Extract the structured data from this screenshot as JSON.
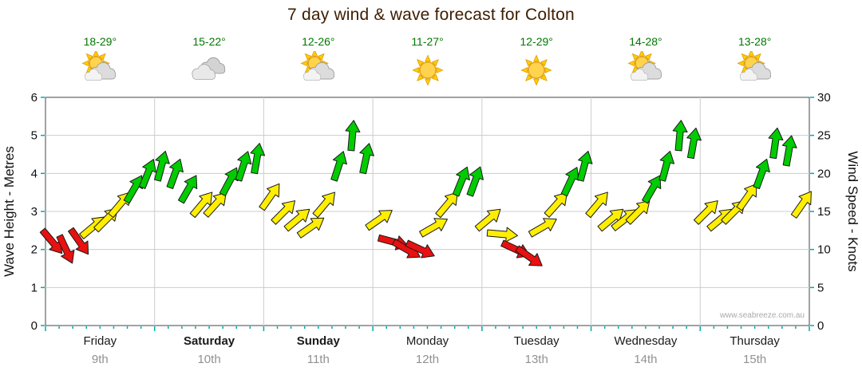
{
  "title": "7 day wind & wave forecast for Colton",
  "watermark": "www.seabreeze.com.au",
  "axes": {
    "left_label": "Wave Height - Metres",
    "right_label": "Wind Speed - Knots",
    "left_ticks": [
      "0",
      "1",
      "2",
      "3",
      "4",
      "5",
      "6"
    ],
    "right_ticks": [
      "0",
      "5",
      "10",
      "15",
      "20",
      "25",
      "30"
    ]
  },
  "days": [
    {
      "name": "Friday",
      "date": "9th",
      "temp": "18-29°",
      "icon": "partly-cloudy",
      "bold": false
    },
    {
      "name": "Saturday",
      "date": "10th",
      "temp": "15-22°",
      "icon": "cloudy",
      "bold": true
    },
    {
      "name": "Sunday",
      "date": "11th",
      "temp": "12-26°",
      "icon": "partly-cloudy",
      "bold": true
    },
    {
      "name": "Monday",
      "date": "12th",
      "temp": "11-27°",
      "icon": "sunny",
      "bold": false
    },
    {
      "name": "Tuesday",
      "date": "13th",
      "temp": "12-29°",
      "icon": "sunny",
      "bold": false
    },
    {
      "name": "Wednesday",
      "date": "14th",
      "temp": "14-28°",
      "icon": "partly-cloudy",
      "bold": false
    },
    {
      "name": "Thursday",
      "date": "15th",
      "temp": "13-28°",
      "icon": "partly-cloudy",
      "bold": false
    }
  ],
  "colors": {
    "arrow_red": "#e81010",
    "arrow_yellow": "#ffee00",
    "arrow_green": "#00cc00",
    "arrow_outline": "#1a1a1a",
    "temp_text": "#007700",
    "grid": "#cccccc",
    "axis": "#444444",
    "tick": "#00aaaa",
    "watermark_text": "#aaaaaa"
  },
  "chart_data": {
    "type": "scatter",
    "title": "7 day wind & wave forecast for Colton",
    "ylabel_left": "Wave Height - Metres",
    "ylabel_right": "Wind Speed - Knots",
    "ylim_wave": [
      0,
      6
    ],
    "ylim_wind": [
      0,
      30
    ],
    "grid": true,
    "categories": [
      "Friday 9th",
      "Saturday 10th",
      "Sunday 11th",
      "Monday 12th",
      "Tuesday 13th",
      "Wednesday 14th",
      "Thursday 15th"
    ],
    "points_per_day": 8,
    "wind_series": {
      "name": "Wind speed (knots, arrow = direction)",
      "knots": [
        11,
        10,
        11,
        13,
        14,
        16,
        18,
        20,
        21,
        20,
        18,
        16,
        16,
        19,
        21,
        22,
        17,
        15,
        14,
        13,
        16,
        21,
        25,
        22,
        14,
        11,
        10,
        10,
        13,
        16,
        19,
        19,
        14,
        12,
        10,
        9,
        13,
        16,
        19,
        21,
        16,
        14,
        14,
        15,
        18,
        21,
        25,
        24,
        15,
        14,
        15,
        17,
        20,
        24,
        23,
        16
      ],
      "direction_deg": [
        140,
        155,
        145,
        50,
        45,
        40,
        30,
        22,
        15,
        20,
        30,
        40,
        42,
        28,
        18,
        10,
        35,
        45,
        50,
        55,
        40,
        18,
        5,
        12,
        55,
        105,
        120,
        115,
        60,
        40,
        22,
        20,
        50,
        95,
        115,
        125,
        60,
        42,
        25,
        15,
        40,
        50,
        52,
        45,
        30,
        15,
        5,
        10,
        45,
        50,
        45,
        35,
        20,
        8,
        10,
        35
      ]
    },
    "color_scale": {
      "red_below_knots": 12,
      "yellow_below_knots": 17.5,
      "green_at_or_above_knots": 17.5
    }
  }
}
